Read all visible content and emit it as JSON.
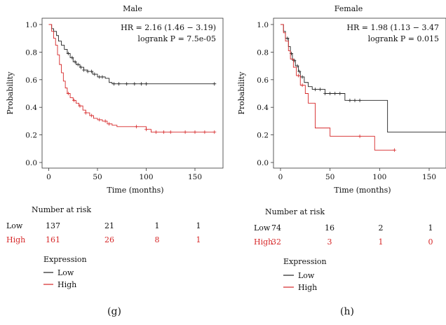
{
  "colors": {
    "low": "#222222",
    "high": "#d62728"
  },
  "panels": [
    {
      "title": "Male",
      "hr_text": "HR = 2.16 (1.46 − 3.19)",
      "logrank_text": "logrank P = 7.5e-05",
      "risk_title": "Number at risk",
      "risk_rows": [
        {
          "label": "Low",
          "values": [
            "137",
            "21",
            "1",
            "1"
          ]
        },
        {
          "label": "High",
          "values": [
            "161",
            "26",
            "8",
            "1"
          ]
        }
      ],
      "legend_title": "Expression",
      "legend_items": [
        "Low",
        "High"
      ],
      "caption": "(g)"
    },
    {
      "title": "Female",
      "hr_text": "HR = 1.98 (1.13 − 3.47",
      "logrank_text": "logrank P = 0.015",
      "risk_title": "Number at risk",
      "risk_rows": [
        {
          "label": "Low",
          "values": [
            "74",
            "16",
            "2",
            "1"
          ]
        },
        {
          "label": "High",
          "values": [
            "32",
            "3",
            "1",
            "0"
          ]
        }
      ],
      "legend_title": "Expression",
      "legend_items": [
        "Low",
        "High"
      ],
      "caption": "(h)"
    }
  ],
  "chart_data": [
    {
      "type": "line",
      "title": "Male",
      "xlabel": "Time (months)",
      "ylabel": "Probability",
      "xlim": [
        0,
        170
      ],
      "ylim": [
        0,
        1
      ],
      "xticks": [
        0,
        50,
        100,
        150
      ],
      "yticks": [
        0.0,
        0.2,
        0.4,
        0.6,
        0.8,
        1.0
      ],
      "series": [
        {
          "name": "Low",
          "x": [
            0,
            3,
            5,
            8,
            10,
            13,
            16,
            19,
            22,
            25,
            28,
            32,
            36,
            40,
            45,
            50,
            58,
            62,
            65,
            170
          ],
          "y": [
            1.0,
            0.97,
            0.95,
            0.92,
            0.88,
            0.85,
            0.82,
            0.79,
            0.76,
            0.73,
            0.71,
            0.69,
            0.67,
            0.66,
            0.64,
            0.62,
            0.61,
            0.58,
            0.57,
            0.57
          ],
          "censor_x": [
            20,
            24,
            27,
            30,
            33,
            36,
            40,
            44,
            47,
            52,
            55,
            67,
            72,
            80,
            88,
            95,
            100,
            170
          ]
        },
        {
          "name": "High",
          "x": [
            0,
            3,
            5,
            7,
            9,
            11,
            13,
            15,
            17,
            19,
            22,
            25,
            28,
            31,
            35,
            38,
            42,
            46,
            50,
            55,
            60,
            65,
            70,
            100,
            105,
            170
          ],
          "y": [
            1.0,
            0.95,
            0.9,
            0.85,
            0.78,
            0.71,
            0.65,
            0.59,
            0.54,
            0.5,
            0.47,
            0.45,
            0.43,
            0.41,
            0.38,
            0.36,
            0.34,
            0.32,
            0.31,
            0.3,
            0.28,
            0.27,
            0.26,
            0.24,
            0.22,
            0.22
          ],
          "censor_x": [
            20,
            26,
            32,
            38,
            44,
            52,
            58,
            62,
            90,
            100,
            110,
            118,
            125,
            140,
            150,
            160,
            170
          ]
        }
      ]
    },
    {
      "type": "line",
      "title": "Female",
      "xlabel": "Time (months)",
      "ylabel": "Probability",
      "xlim": [
        0,
        170
      ],
      "ylim": [
        0,
        1
      ],
      "xticks": [
        0,
        50,
        100,
        150
      ],
      "yticks": [
        0.0,
        0.2,
        0.4,
        0.6,
        0.8,
        1.0
      ],
      "series": [
        {
          "name": "Low",
          "x": [
            0,
            3,
            5,
            8,
            10,
            12,
            15,
            18,
            20,
            24,
            28,
            32,
            45,
            65,
            100,
            108,
            170
          ],
          "y": [
            1.0,
            0.95,
            0.9,
            0.84,
            0.79,
            0.74,
            0.7,
            0.66,
            0.62,
            0.58,
            0.55,
            0.53,
            0.5,
            0.45,
            0.45,
            0.22,
            0.22
          ],
          "censor_x": [
            7,
            11,
            14,
            17,
            19,
            22,
            35,
            40,
            45,
            50,
            55,
            60,
            70,
            75,
            80
          ]
        },
        {
          "name": "High",
          "x": [
            0,
            3,
            5,
            8,
            10,
            13,
            16,
            20,
            25,
            28,
            35,
            50,
            70,
            90,
            95,
            115
          ],
          "y": [
            1.0,
            0.94,
            0.88,
            0.81,
            0.75,
            0.69,
            0.63,
            0.56,
            0.5,
            0.43,
            0.25,
            0.19,
            0.19,
            0.19,
            0.09,
            0.09
          ],
          "censor_x": [
            18,
            22,
            80,
            115
          ]
        }
      ]
    }
  ]
}
